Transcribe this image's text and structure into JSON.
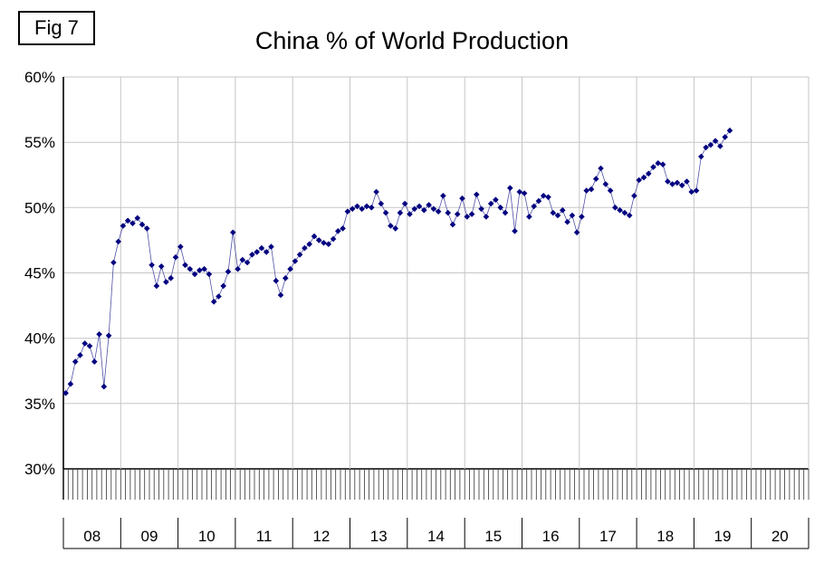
{
  "fig_label": "Fig 7",
  "chart_data": {
    "type": "line",
    "title": "China % of World Production",
    "frequency": "monthly",
    "start": "2008-01",
    "ylim": [
      30,
      60
    ],
    "ytick_step": 5,
    "ytick_labels": [
      "30%",
      "35%",
      "40%",
      "45%",
      "50%",
      "55%",
      "60%"
    ],
    "year_labels": [
      "08",
      "09",
      "10",
      "11",
      "12",
      "13",
      "14",
      "15",
      "16",
      "17",
      "18",
      "19",
      "20"
    ],
    "grid": true,
    "legend": "none",
    "marker": "diamond",
    "marker_color": "#000080",
    "line_color": "#5050a8",
    "gridline_color": "#c6c6c6",
    "axis_color": "#000000",
    "years_order": [
      "2008",
      "2009",
      "2010",
      "2011",
      "2012",
      "2013",
      "2014",
      "2015",
      "2016",
      "2017",
      "2018",
      "2019"
    ],
    "values_by_year": {
      "2008": [
        35.8,
        36.5,
        38.2,
        38.7,
        39.6,
        39.4,
        38.2,
        40.3,
        36.3,
        40.2,
        45.8,
        47.4
      ],
      "2009": [
        48.6,
        49.0,
        48.8,
        49.2,
        48.7,
        48.4,
        45.6,
        44.0,
        45.5,
        44.3,
        44.6,
        46.2
      ],
      "2010": [
        47.0,
        45.6,
        45.3,
        44.9,
        45.2,
        45.3,
        44.9,
        42.8,
        43.2,
        44.0,
        45.1,
        48.1
      ],
      "2011": [
        45.3,
        46.0,
        45.8,
        46.4,
        46.6,
        46.9,
        46.6,
        47.0,
        44.4,
        43.3,
        44.6,
        45.3
      ],
      "2012": [
        45.9,
        46.4,
        46.9,
        47.2,
        47.8,
        47.5,
        47.3,
        47.2,
        47.6,
        48.2,
        48.4,
        49.7
      ],
      "2013": [
        49.9,
        50.1,
        49.9,
        50.1,
        50.0,
        51.2,
        50.3,
        49.6,
        48.6,
        48.4,
        49.6,
        50.3
      ],
      "2014": [
        49.5,
        49.9,
        50.1,
        49.8,
        50.2,
        49.9,
        49.7,
        50.9,
        49.6,
        48.7,
        49.5,
        50.7
      ],
      "2015": [
        49.3,
        49.5,
        51.0,
        49.9,
        49.3,
        50.3,
        50.6,
        50.0,
        49.6,
        51.5,
        48.2,
        51.2
      ],
      "2016": [
        51.1,
        49.3,
        50.1,
        50.5,
        50.9,
        50.8,
        49.6,
        49.4,
        49.8,
        48.9,
        49.4,
        48.1
      ],
      "2017": [
        49.3,
        51.3,
        51.4,
        52.2,
        53.0,
        51.8,
        51.3,
        50.0,
        49.8,
        49.6,
        49.4,
        50.9
      ],
      "2018": [
        52.1,
        52.3,
        52.6,
        53.1,
        53.4,
        53.3,
        52.0,
        51.8,
        51.9,
        51.7,
        52.0,
        51.2
      ],
      "2019": [
        51.3,
        53.9,
        54.6,
        54.8,
        55.1,
        54.7,
        55.4,
        55.9
      ]
    }
  }
}
